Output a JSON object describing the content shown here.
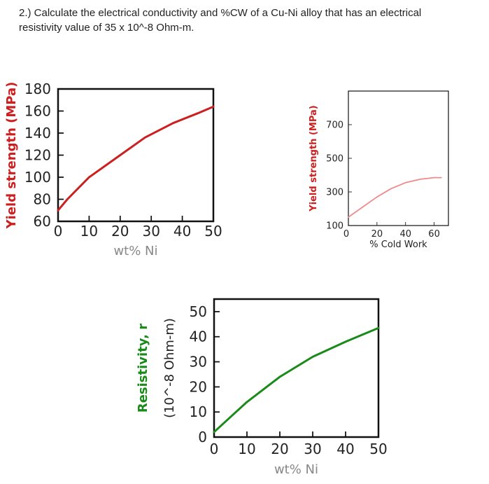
{
  "question": {
    "line1": "2.) Calculate the electrical conductivity and %CW of a Cu-Ni alloy that has an electrical",
    "line2": "resistivity value of 35 x 10^-8 Ohm-m."
  },
  "chart_data": [
    {
      "type": "line",
      "xlabel": "wt% Ni",
      "ylabel": "Yield strength (MPa)",
      "xlim": [
        0,
        50
      ],
      "ylim": [
        60,
        180
      ],
      "xticks": [
        "0",
        "10",
        "20",
        "30",
        "40",
        "50"
      ],
      "yticks": [
        "60",
        "80",
        "100",
        "120",
        "140",
        "160",
        "180"
      ],
      "grid": false,
      "series": [
        {
          "color": "#cc1f1f",
          "x": [
            0,
            3,
            10,
            20,
            28,
            37,
            45,
            50
          ],
          "y": [
            70,
            80,
            100,
            120,
            136,
            149,
            158,
            164
          ]
        }
      ]
    },
    {
      "type": "line",
      "xlabel": "% Cold Work",
      "ylabel": "Yield strength (MPa)",
      "xlim": [
        0,
        70
      ],
      "ylim": [
        100,
        900
      ],
      "xticks": [
        "0",
        "20",
        "40",
        "60"
      ],
      "yticks": [
        "100",
        "300",
        "500",
        "700"
      ],
      "grid": false,
      "series": [
        {
          "color": "#f08a8a",
          "x": [
            0,
            10,
            20,
            30,
            40,
            50,
            60,
            65
          ],
          "y": [
            150,
            210,
            270,
            320,
            355,
            375,
            385,
            385
          ]
        }
      ]
    },
    {
      "type": "line",
      "xlabel": "wt% Ni",
      "ylabel": "Resistivity,  r",
      "ylabel2": "(10^-8 Ohm-m)",
      "xlim": [
        0,
        50
      ],
      "ylim": [
        0,
        55
      ],
      "xticks": [
        "0",
        "10",
        "20",
        "30",
        "40",
        "50"
      ],
      "yticks": [
        "0",
        "10",
        "20",
        "30",
        "40",
        "50"
      ],
      "grid": false,
      "series": [
        {
          "color": "#1a8a1a",
          "x": [
            0,
            5,
            10,
            20,
            30,
            40,
            50
          ],
          "y": [
            2,
            8,
            14,
            24,
            32,
            38,
            43.5
          ]
        }
      ]
    }
  ]
}
